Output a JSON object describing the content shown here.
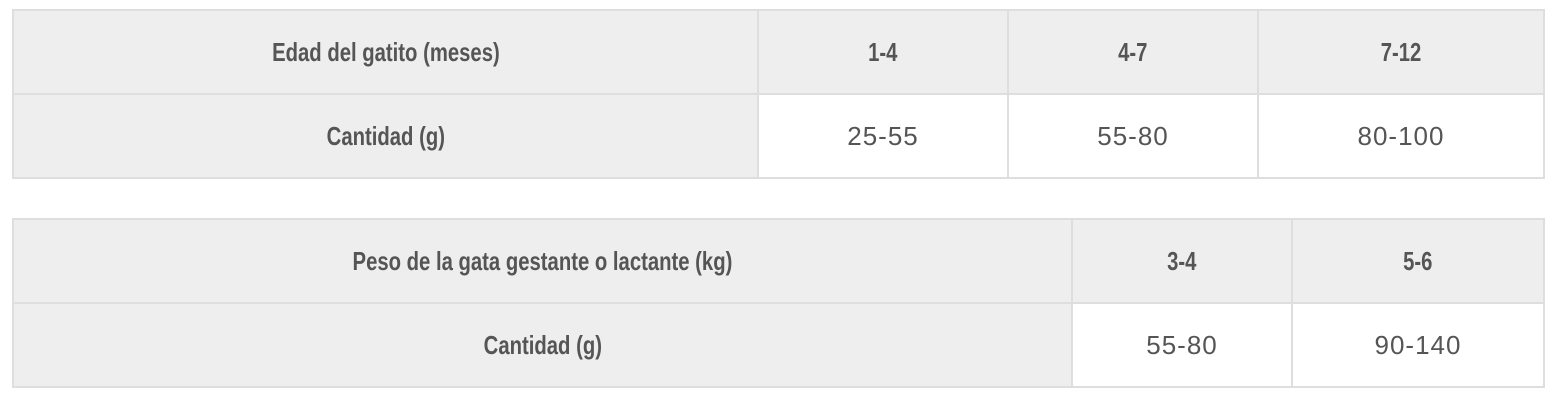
{
  "kitten_table": {
    "header_label": "Edad del gatito (meses)",
    "columns": [
      "1-4",
      "4-7",
      "7-12"
    ],
    "row_label": "Cantidad (g)",
    "values": [
      "25-55",
      "55-80",
      "80-100"
    ]
  },
  "mother_table": {
    "header_label": "Peso de la gata gestante o lactante (kg)",
    "columns": [
      "3-4",
      "5-6"
    ],
    "row_label": "Cantidad (g)",
    "values": [
      "55-80",
      "90-140"
    ]
  },
  "colors": {
    "header_bg": "#eeeeee",
    "border": "#dedede",
    "text": "#555555"
  }
}
